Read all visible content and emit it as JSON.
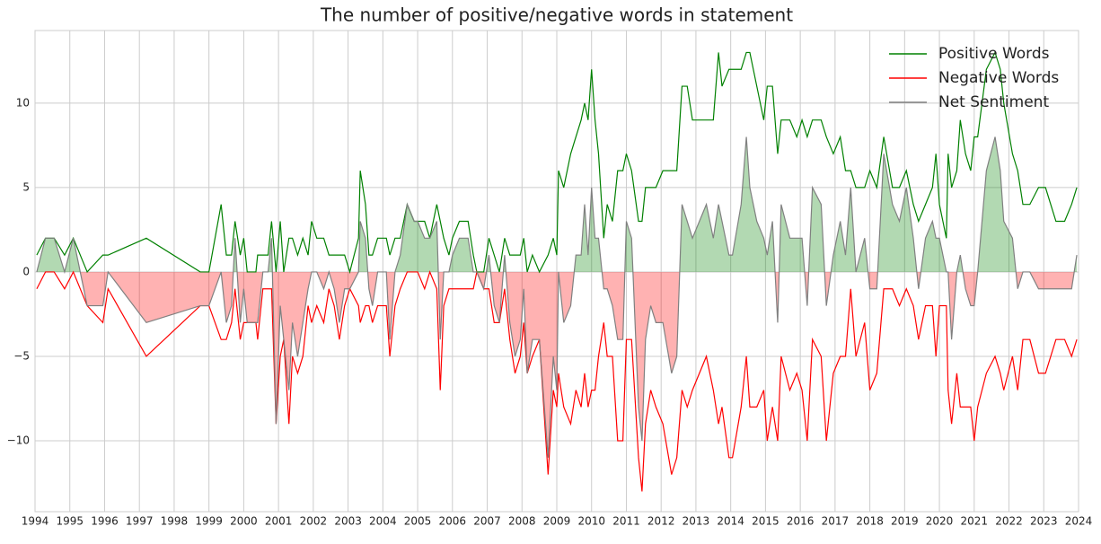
{
  "chart_data": {
    "type": "line",
    "title": "The number of positive/negative words in statement",
    "x": [
      1994.05,
      1994.3,
      1994.55,
      1994.85,
      1995.1,
      1995.5,
      1995.95,
      1996.1,
      1997.2,
      1998.75,
      1999.0,
      1999.35,
      1999.5,
      1999.65,
      1999.75,
      1999.9,
      2000.0,
      2000.1,
      2000.35,
      2000.4,
      2000.55,
      2000.7,
      2000.8,
      2000.93,
      2001.05,
      2001.15,
      2001.3,
      2001.4,
      2001.55,
      2001.7,
      2001.85,
      2001.95,
      2002.1,
      2002.3,
      2002.45,
      2002.6,
      2002.75,
      2002.9,
      2003.05,
      2003.3,
      2003.35,
      2003.5,
      2003.6,
      2003.7,
      2003.85,
      2004.1,
      2004.2,
      2004.35,
      2004.5,
      2004.7,
      2004.9,
      2005.0,
      2005.2,
      2005.35,
      2005.55,
      2005.65,
      2005.75,
      2005.9,
      2006.0,
      2006.2,
      2006.45,
      2006.6,
      2006.7,
      2006.9,
      2007.05,
      2007.2,
      2007.35,
      2007.5,
      2007.65,
      2007.8,
      2007.95,
      2008.05,
      2008.15,
      2008.3,
      2008.5,
      2008.75,
      2008.9,
      2009.0,
      2009.05,
      2009.2,
      2009.4,
      2009.55,
      2009.7,
      2009.8,
      2009.9,
      2010.0,
      2010.1,
      2010.2,
      2010.35,
      2010.45,
      2010.6,
      2010.75,
      2010.9,
      2011.0,
      2011.15,
      2011.35,
      2011.45,
      2011.55,
      2011.7,
      2011.85,
      2012.05,
      2012.3,
      2012.45,
      2012.6,
      2012.75,
      2012.9,
      2013.3,
      2013.5,
      2013.65,
      2013.75,
      2013.95,
      2014.05,
      2014.3,
      2014.45,
      2014.55,
      2014.75,
      2014.95,
      2015.05,
      2015.2,
      2015.35,
      2015.45,
      2015.7,
      2015.9,
      2016.05,
      2016.2,
      2016.35,
      2016.6,
      2016.75,
      2016.95,
      2017.15,
      2017.3,
      2017.45,
      2017.6,
      2017.85,
      2018.0,
      2018.2,
      2018.4,
      2018.65,
      2018.85,
      2019.05,
      2019.25,
      2019.4,
      2019.6,
      2019.8,
      2019.9,
      2020.0,
      2020.2,
      2020.25,
      2020.35,
      2020.5,
      2020.6,
      2020.75,
      2020.9,
      2021.0,
      2021.1,
      2021.35,
      2021.6,
      2021.75,
      2021.85,
      2022.1,
      2022.25,
      2022.4,
      2022.6,
      2022.85,
      2023.05,
      2023.35,
      2023.6,
      2023.8,
      2023.95
    ],
    "series": [
      {
        "name": "Positive Words",
        "color": "#008000",
        "values": [
          1,
          2,
          2,
          1,
          2,
          0,
          1,
          1,
          2,
          0,
          0,
          4,
          1,
          1,
          3,
          1,
          2,
          0,
          0,
          1,
          1,
          1,
          3,
          0,
          3,
          0,
          2,
          2,
          1,
          2,
          1,
          3,
          2,
          2,
          1,
          1,
          1,
          1,
          0,
          2,
          6,
          4,
          1,
          1,
          2,
          2,
          1,
          2,
          2,
          4,
          3,
          3,
          3,
          2,
          4,
          3,
          2,
          1,
          2,
          3,
          3,
          1,
          0,
          0,
          2,
          1,
          0,
          2,
          1,
          1,
          1,
          2,
          0,
          1,
          0,
          1,
          2,
          1,
          6,
          5,
          7,
          8,
          9,
          10,
          9,
          12,
          9,
          7,
          2,
          4,
          3,
          6,
          6,
          7,
          6,
          3,
          3,
          5,
          5,
          5,
          6,
          6,
          6,
          11,
          11,
          9,
          9,
          9,
          13,
          11,
          12,
          12,
          12,
          13,
          13,
          11,
          9,
          11,
          11,
          7,
          9,
          9,
          8,
          9,
          8,
          9,
          9,
          8,
          7,
          8,
          6,
          6,
          5,
          5,
          6,
          5,
          8,
          5,
          5,
          6,
          4,
          3,
          4,
          5,
          7,
          4,
          2,
          7,
          5,
          6,
          9,
          7,
          6,
          8,
          8,
          12,
          13,
          12,
          10,
          7,
          6,
          4,
          4,
          5,
          5,
          3,
          3,
          4,
          5
        ]
      },
      {
        "name": "Negative Words",
        "color": "#ff0000",
        "values": [
          -1,
          0,
          0,
          -1,
          0,
          -2,
          -3,
          -1,
          -5,
          -2,
          -2,
          -4,
          -4,
          -3,
          -1,
          -4,
          -3,
          -3,
          -3,
          -4,
          -1,
          -1,
          -1,
          -9,
          -5,
          -4,
          -9,
          -5,
          -6,
          -5,
          -2,
          -3,
          -2,
          -3,
          -1,
          -2,
          -4,
          -2,
          -1,
          -2,
          -3,
          -2,
          -2,
          -3,
          -2,
          -2,
          -5,
          -2,
          -1,
          0,
          0,
          0,
          -1,
          0,
          -1,
          -7,
          -2,
          -1,
          -1,
          -1,
          -1,
          -1,
          0,
          -1,
          -1,
          -3,
          -3,
          -1,
          -4,
          -6,
          -5,
          -3,
          -6,
          -5,
          -4,
          -12,
          -7,
          -8,
          -6,
          -8,
          -9,
          -7,
          -8,
          -6,
          -8,
          -7,
          -7,
          -5,
          -3,
          -5,
          -5,
          -10,
          -10,
          -4,
          -4,
          -11,
          -13,
          -9,
          -7,
          -8,
          -9,
          -12,
          -11,
          -7,
          -8,
          -7,
          -5,
          -7,
          -9,
          -8,
          -11,
          -11,
          -8,
          -5,
          -8,
          -8,
          -7,
          -10,
          -8,
          -10,
          -5,
          -7,
          -6,
          -7,
          -10,
          -4,
          -5,
          -10,
          -6,
          -5,
          -5,
          -1,
          -5,
          -3,
          -7,
          -6,
          -1,
          -1,
          -2,
          -1,
          -2,
          -4,
          -2,
          -2,
          -5,
          -2,
          -2,
          -7,
          -9,
          -6,
          -8,
          -8,
          -8,
          -10,
          -8,
          -6,
          -5,
          -6,
          -7,
          -5,
          -7,
          -4,
          -4,
          -6,
          -6,
          -4,
          -4,
          -5,
          -4
        ]
      },
      {
        "name": "Net Sentiment",
        "color": "#808080",
        "values": [
          0,
          2,
          2,
          0,
          2,
          -2,
          -2,
          0,
          -3,
          -2,
          -2,
          0,
          -3,
          -2,
          2,
          -3,
          -1,
          -3,
          -3,
          -3,
          0,
          0,
          2,
          -9,
          -2,
          -4,
          -7,
          -3,
          -5,
          -3,
          -1,
          0,
          0,
          -1,
          0,
          -1,
          -3,
          -1,
          -1,
          0,
          3,
          2,
          -1,
          -2,
          0,
          0,
          -4,
          0,
          1,
          4,
          3,
          3,
          2,
          2,
          3,
          -4,
          0,
          0,
          1,
          2,
          2,
          0,
          0,
          -1,
          1,
          -2,
          -3,
          1,
          -3,
          -5,
          -4,
          -1,
          -6,
          -4,
          -4,
          -11,
          -5,
          -7,
          0,
          -3,
          -2,
          1,
          1,
          4,
          1,
          5,
          2,
          2,
          -1,
          -1,
          -2,
          -4,
          -4,
          3,
          2,
          -8,
          -10,
          -4,
          -2,
          -3,
          -3,
          -6,
          -5,
          4,
          3,
          2,
          4,
          2,
          4,
          3,
          1,
          1,
          4,
          8,
          5,
          3,
          2,
          1,
          3,
          -3,
          4,
          2,
          2,
          2,
          -2,
          5,
          4,
          -2,
          1,
          3,
          1,
          5,
          0,
          2,
          -1,
          -1,
          7,
          4,
          3,
          5,
          2,
          -1,
          2,
          3,
          2,
          2,
          0,
          0,
          -4,
          0,
          1,
          -1,
          -2,
          -2,
          0,
          6,
          8,
          6,
          3,
          2,
          -1,
          0,
          0,
          -1,
          -1,
          -1,
          -1,
          -1,
          1
        ]
      }
    ],
    "xlim": [
      1994,
      2024
    ],
    "xticks": [
      1994,
      1995,
      1996,
      1997,
      1998,
      1999,
      2000,
      2001,
      2002,
      2003,
      2004,
      2005,
      2006,
      2007,
      2008,
      2009,
      2010,
      2011,
      2012,
      2013,
      2014,
      2015,
      2016,
      2017,
      2018,
      2019,
      2020,
      2021,
      2022,
      2023,
      2024
    ],
    "ylim": [
      -14.2,
      14.3
    ],
    "yticks": [
      {
        "value": -10,
        "label": "−10"
      },
      {
        "value": -5,
        "label": "−5"
      },
      0,
      5,
      10
    ],
    "grid": true,
    "legend": "upper right"
  }
}
